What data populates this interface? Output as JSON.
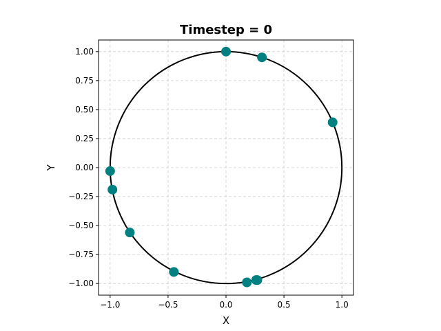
{
  "chart_data": {
    "type": "scatter",
    "title": "Timestep = 0",
    "xlabel": "X",
    "ylabel": "Y",
    "xlim": [
      -1.1,
      1.1
    ],
    "ylim": [
      -1.1,
      1.1
    ],
    "grid": true,
    "x_ticks": [
      "−1.0",
      "−0.5",
      "0.0",
      "0.5",
      "1.0"
    ],
    "x_tick_values": [
      -1.0,
      -0.5,
      0.0,
      0.5,
      1.0
    ],
    "y_ticks": [
      "1.00",
      "0.75",
      "0.50",
      "0.25",
      "0.00",
      "−0.25",
      "−0.50",
      "−0.75",
      "−1.00"
    ],
    "y_tick_values": [
      1.0,
      0.75,
      0.5,
      0.25,
      0.0,
      -0.25,
      -0.5,
      -0.75,
      -1.0
    ],
    "circle": {
      "center": [
        0,
        0
      ],
      "radius": 1.0,
      "color": "#000000"
    },
    "points": [
      {
        "x": 0.0,
        "y": 1.0
      },
      {
        "x": 0.31,
        "y": 0.95
      },
      {
        "x": 0.92,
        "y": 0.39
      },
      {
        "x": -1.0,
        "y": -0.03
      },
      {
        "x": -0.98,
        "y": -0.19
      },
      {
        "x": -0.83,
        "y": -0.56
      },
      {
        "x": -0.45,
        "y": -0.9
      },
      {
        "x": 0.18,
        "y": -0.99
      },
      {
        "x": 0.26,
        "y": -0.97
      },
      {
        "x": 0.27,
        "y": -0.97
      }
    ],
    "point_color": "#008080",
    "grid_color": "#cccccc"
  }
}
